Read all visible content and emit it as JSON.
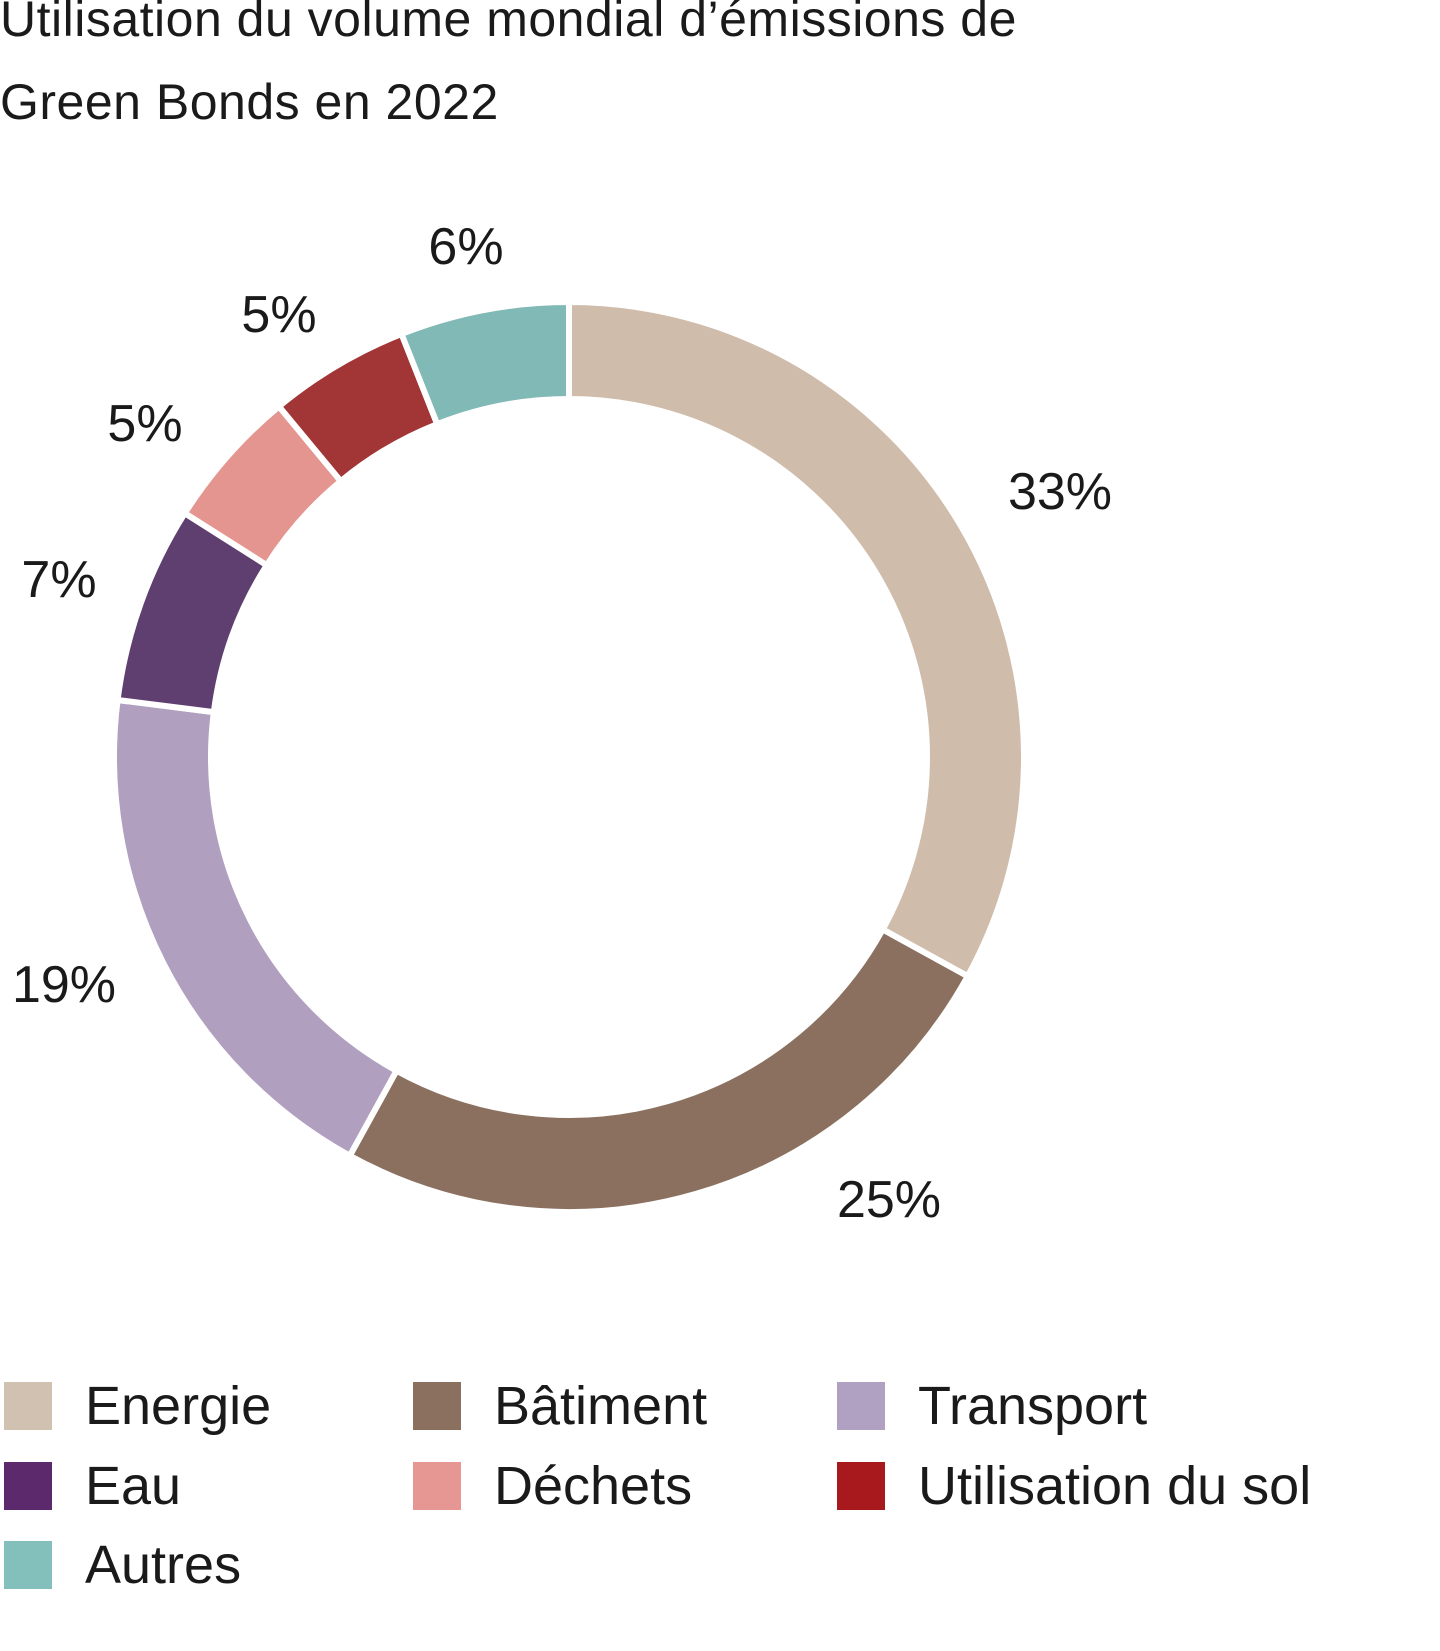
{
  "chart_data": {
    "type": "pie",
    "variant": "donut",
    "title": "Utilisation du volume mondial d’émissions de Green Bonds en 2022",
    "title_lines": [
      "Utilisation du volume mondial d’émissions de",
      "Green Bonds en 2022"
    ],
    "unit": "%",
    "legend_position": "bottom",
    "slices": [
      {
        "name": "Energie",
        "value": 33,
        "label": "33%",
        "color": "#cfbcaa"
      },
      {
        "name": "Bâtiment",
        "value": 25,
        "label": "25%",
        "color": "#8b7060"
      },
      {
        "name": "Transport",
        "value": 19,
        "label": "19%",
        "color": "#b09fbf"
      },
      {
        "name": "Eau",
        "value": 7,
        "label": "7%",
        "color": "#5e3f70"
      },
      {
        "name": "Déchets",
        "value": 5,
        "label": "5%",
        "color": "#e5958f"
      },
      {
        "name": "Utilisation du sol",
        "value": 5,
        "label": "5%",
        "color": "#a23535"
      },
      {
        "name": "Autres",
        "value": 6,
        "label": "6%",
        "color": "#80b9b5"
      }
    ],
    "legend": [
      {
        "name": "Energie",
        "color": "#d0c1b0"
      },
      {
        "name": "Bâtiment",
        "color": "#8b7060"
      },
      {
        "name": "Transport",
        "color": "#b0a0c2"
      },
      {
        "name": "Eau",
        "color": "#5c2a6c"
      },
      {
        "name": "Déchets",
        "color": "#e79793"
      },
      {
        "name": "Utilisation du sol",
        "color": "#a8191e"
      },
      {
        "name": "Autres",
        "color": "#83bfbb"
      }
    ]
  }
}
